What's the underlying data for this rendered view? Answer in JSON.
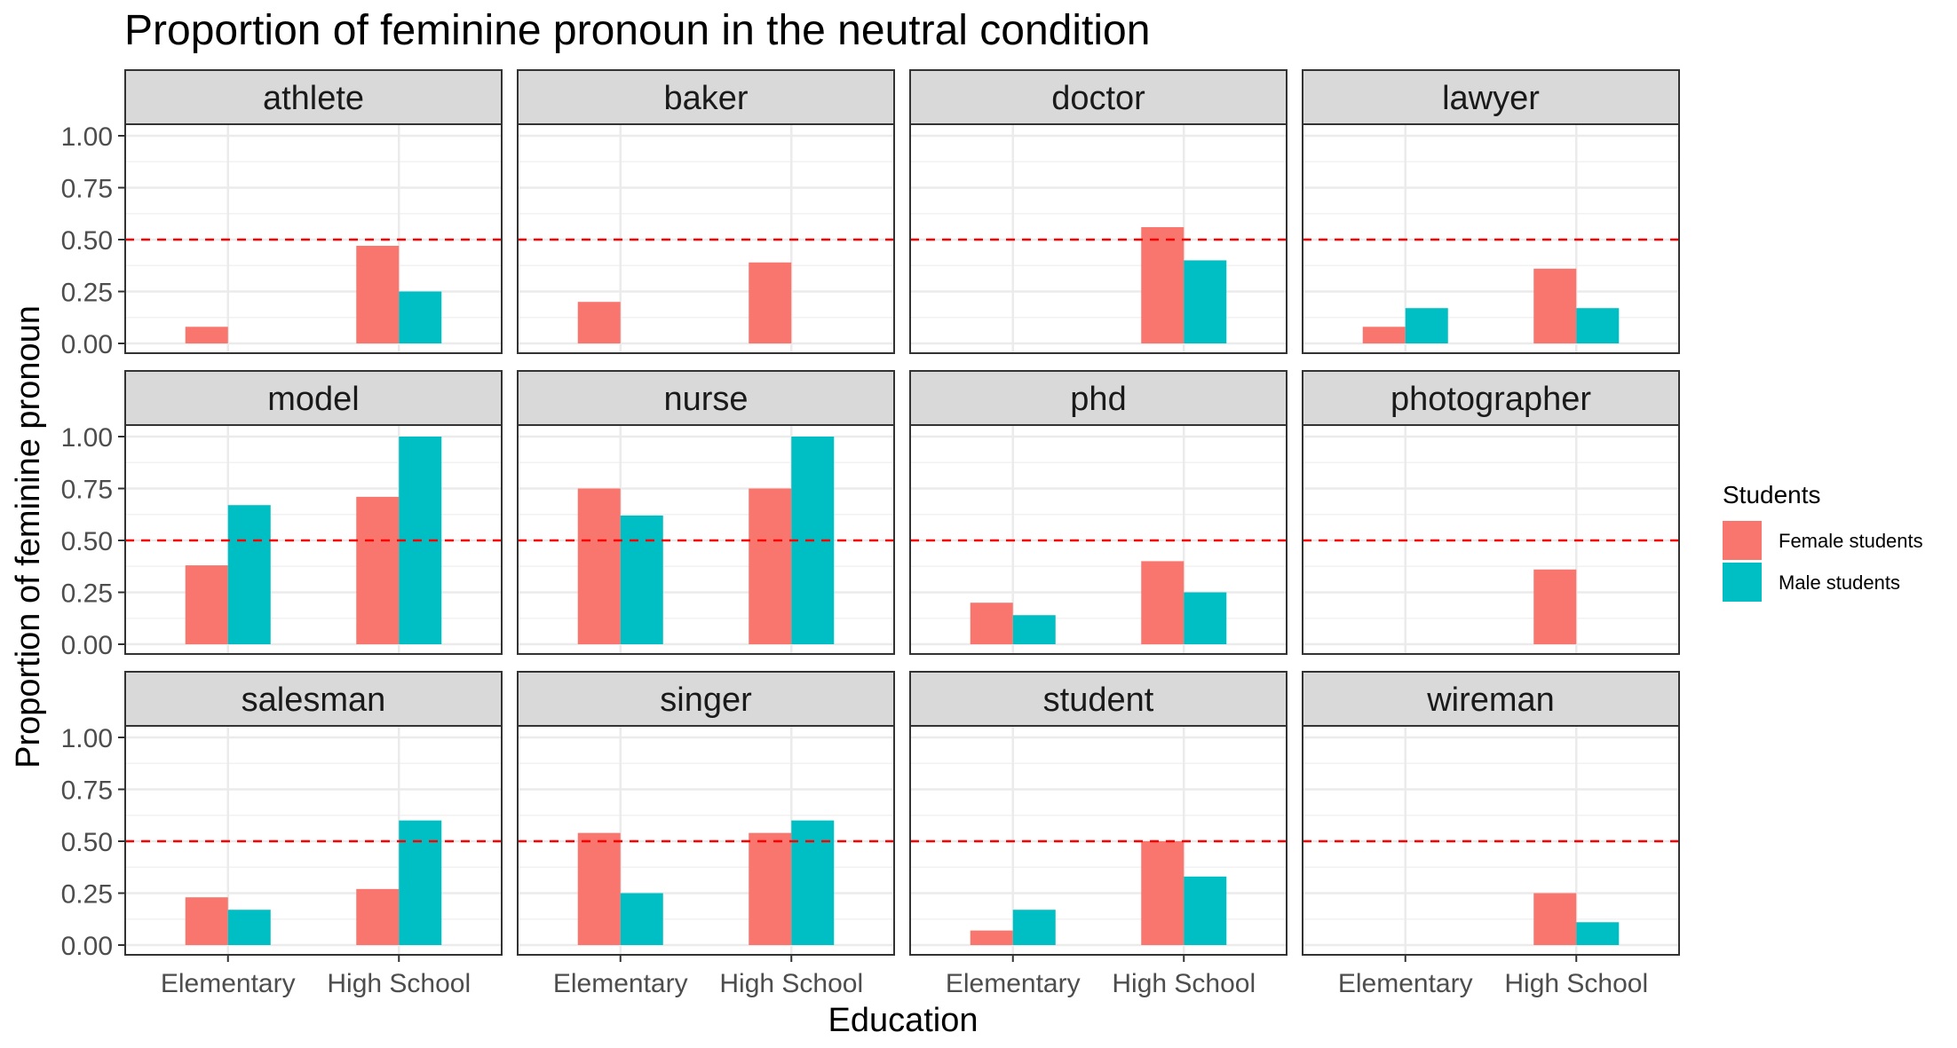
{
  "chart_data": {
    "type": "bar",
    "title": "Proportion of feminine pronoun in the neutral condition",
    "xlabel": "Education",
    "ylabel": "Proportion of feminine pronoun",
    "categories": [
      "Elementary",
      "High School"
    ],
    "ylim": [
      0,
      1.05
    ],
    "yticks": [
      "0.00",
      "0.25",
      "0.50",
      "0.75",
      "1.00"
    ],
    "ytick_values": [
      0,
      0.25,
      0.5,
      0.75,
      1.0
    ],
    "reference_line": {
      "y": 0.5,
      "style": "dashed",
      "color": "#FF0000"
    },
    "legend": {
      "title": "Students",
      "placement": "right",
      "entries": [
        "Female students",
        "Male students"
      ]
    },
    "series_colors": {
      "Female students": "#F8766D",
      "Male students": "#00BFC4"
    },
    "grid": true,
    "facets": [
      {
        "name": "athlete",
        "female": [
          0.08,
          0.47
        ],
        "male": [
          0.0,
          0.25
        ]
      },
      {
        "name": "baker",
        "female": [
          0.2,
          0.39
        ],
        "male": [
          0.0,
          0.0
        ]
      },
      {
        "name": "doctor",
        "female": [
          0.0,
          0.56
        ],
        "male": [
          0.0,
          0.4
        ]
      },
      {
        "name": "lawyer",
        "female": [
          0.08,
          0.36
        ],
        "male": [
          0.17,
          0.17
        ]
      },
      {
        "name": "model",
        "female": [
          0.38,
          0.71
        ],
        "male": [
          0.67,
          1.0
        ]
      },
      {
        "name": "nurse",
        "female": [
          0.75,
          0.75
        ],
        "male": [
          0.62,
          1.0
        ]
      },
      {
        "name": "phd",
        "female": [
          0.2,
          0.4
        ],
        "male": [
          0.14,
          0.25
        ]
      },
      {
        "name": "photographer",
        "female": [
          0.0,
          0.36
        ],
        "male": [
          0.0,
          0.0
        ]
      },
      {
        "name": "salesman",
        "female": [
          0.23,
          0.27
        ],
        "male": [
          0.17,
          0.6
        ]
      },
      {
        "name": "singer",
        "female": [
          0.54,
          0.54
        ],
        "male": [
          0.25,
          0.6
        ]
      },
      {
        "name": "student",
        "female": [
          0.07,
          0.5
        ],
        "male": [
          0.17,
          0.33
        ]
      },
      {
        "name": "wireman",
        "female": [
          0.0,
          0.25
        ],
        "male": [
          0.0,
          0.11
        ]
      }
    ]
  }
}
